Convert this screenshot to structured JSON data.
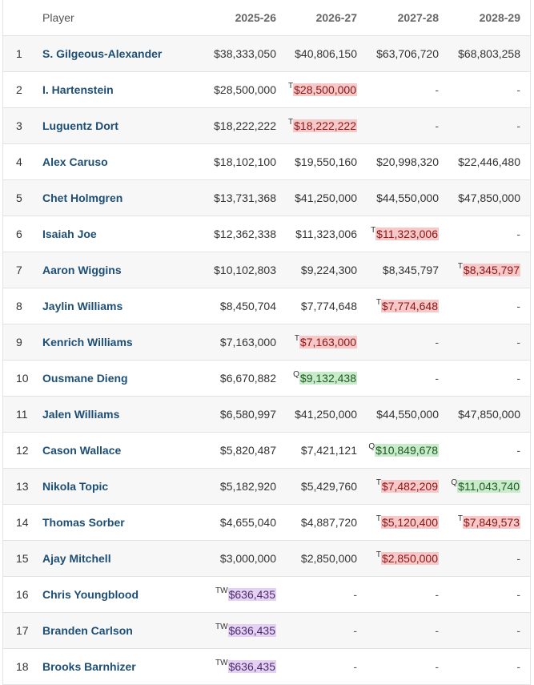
{
  "header": {
    "player_label": "Player",
    "seasons": [
      "2025-26",
      "2026-27",
      "2027-28",
      "2028-29"
    ]
  },
  "rows": [
    {
      "rank": "1",
      "name": "S. Gilgeous-Alexander",
      "cells": [
        {
          "tag": "",
          "value": "$38,333,050"
        },
        {
          "tag": "",
          "value": "$40,806,150"
        },
        {
          "tag": "",
          "value": "$63,706,720"
        },
        {
          "tag": "",
          "value": "$68,803,258"
        }
      ]
    },
    {
      "rank": "2",
      "name": "I. Hartenstein",
      "cells": [
        {
          "tag": "",
          "value": "$28,500,000"
        },
        {
          "tag": "T",
          "value": "$28,500,000"
        },
        {
          "tag": "",
          "value": "-"
        },
        {
          "tag": "",
          "value": "-"
        }
      ]
    },
    {
      "rank": "3",
      "name": "Luguentz Dort",
      "cells": [
        {
          "tag": "",
          "value": "$18,222,222"
        },
        {
          "tag": "T",
          "value": "$18,222,222"
        },
        {
          "tag": "",
          "value": "-"
        },
        {
          "tag": "",
          "value": "-"
        }
      ]
    },
    {
      "rank": "4",
      "name": "Alex Caruso",
      "cells": [
        {
          "tag": "",
          "value": "$18,102,100"
        },
        {
          "tag": "",
          "value": "$19,550,160"
        },
        {
          "tag": "",
          "value": "$20,998,320"
        },
        {
          "tag": "",
          "value": "$22,446,480"
        }
      ]
    },
    {
      "rank": "5",
      "name": "Chet Holmgren",
      "cells": [
        {
          "tag": "",
          "value": "$13,731,368"
        },
        {
          "tag": "",
          "value": "$41,250,000"
        },
        {
          "tag": "",
          "value": "$44,550,000"
        },
        {
          "tag": "",
          "value": "$47,850,000"
        }
      ]
    },
    {
      "rank": "6",
      "name": "Isaiah Joe",
      "cells": [
        {
          "tag": "",
          "value": "$12,362,338"
        },
        {
          "tag": "",
          "value": "$11,323,006"
        },
        {
          "tag": "T",
          "value": "$11,323,006"
        },
        {
          "tag": "",
          "value": "-"
        }
      ]
    },
    {
      "rank": "7",
      "name": "Aaron Wiggins",
      "cells": [
        {
          "tag": "",
          "value": "$10,102,803"
        },
        {
          "tag": "",
          "value": "$9,224,300"
        },
        {
          "tag": "",
          "value": "$8,345,797"
        },
        {
          "tag": "T",
          "value": "$8,345,797"
        }
      ]
    },
    {
      "rank": "8",
      "name": "Jaylin Williams",
      "cells": [
        {
          "tag": "",
          "value": "$8,450,704"
        },
        {
          "tag": "",
          "value": "$7,774,648"
        },
        {
          "tag": "T",
          "value": "$7,774,648"
        },
        {
          "tag": "",
          "value": "-"
        }
      ]
    },
    {
      "rank": "9",
      "name": "Kenrich Williams",
      "cells": [
        {
          "tag": "",
          "value": "$7,163,000"
        },
        {
          "tag": "T",
          "value": "$7,163,000"
        },
        {
          "tag": "",
          "value": "-"
        },
        {
          "tag": "",
          "value": "-"
        }
      ]
    },
    {
      "rank": "10",
      "name": "Ousmane Dieng",
      "cells": [
        {
          "tag": "",
          "value": "$6,670,882"
        },
        {
          "tag": "Q",
          "value": "$9,132,438"
        },
        {
          "tag": "",
          "value": "-"
        },
        {
          "tag": "",
          "value": "-"
        }
      ]
    },
    {
      "rank": "11",
      "name": "Jalen Williams",
      "cells": [
        {
          "tag": "",
          "value": "$6,580,997"
        },
        {
          "tag": "",
          "value": "$41,250,000"
        },
        {
          "tag": "",
          "value": "$44,550,000"
        },
        {
          "tag": "",
          "value": "$47,850,000"
        }
      ]
    },
    {
      "rank": "12",
      "name": "Cason Wallace",
      "cells": [
        {
          "tag": "",
          "value": "$5,820,487"
        },
        {
          "tag": "",
          "value": "$7,421,121"
        },
        {
          "tag": "Q",
          "value": "$10,849,678"
        },
        {
          "tag": "",
          "value": "-"
        }
      ]
    },
    {
      "rank": "13",
      "name": "Nikola Topic",
      "cells": [
        {
          "tag": "",
          "value": "$5,182,920"
        },
        {
          "tag": "",
          "value": "$5,429,760"
        },
        {
          "tag": "T",
          "value": "$7,482,209"
        },
        {
          "tag": "Q",
          "value": "$11,043,740"
        }
      ]
    },
    {
      "rank": "14",
      "name": "Thomas Sorber",
      "cells": [
        {
          "tag": "",
          "value": "$4,655,040"
        },
        {
          "tag": "",
          "value": "$4,887,720"
        },
        {
          "tag": "T",
          "value": "$5,120,400"
        },
        {
          "tag": "T",
          "value": "$7,849,573"
        }
      ]
    },
    {
      "rank": "15",
      "name": "Ajay Mitchell",
      "cells": [
        {
          "tag": "",
          "value": "$3,000,000"
        },
        {
          "tag": "",
          "value": "$2,850,000"
        },
        {
          "tag": "T",
          "value": "$2,850,000"
        },
        {
          "tag": "",
          "value": "-"
        }
      ]
    },
    {
      "rank": "16",
      "name": "Chris Youngblood",
      "cells": [
        {
          "tag": "TW",
          "value": "$636,435"
        },
        {
          "tag": "",
          "value": "-"
        },
        {
          "tag": "",
          "value": "-"
        },
        {
          "tag": "",
          "value": "-"
        }
      ]
    },
    {
      "rank": "17",
      "name": "Branden Carlson",
      "cells": [
        {
          "tag": "TW",
          "value": "$636,435"
        },
        {
          "tag": "",
          "value": "-"
        },
        {
          "tag": "",
          "value": "-"
        },
        {
          "tag": "",
          "value": "-"
        }
      ]
    },
    {
      "rank": "18",
      "name": "Brooks Barnhizer",
      "cells": [
        {
          "tag": "TW",
          "value": "$636,435"
        },
        {
          "tag": "",
          "value": "-"
        },
        {
          "tag": "",
          "value": "-"
        },
        {
          "tag": "",
          "value": "-"
        }
      ]
    }
  ],
  "colors": {
    "player_link": "#1d4e75",
    "tag_T": "#f6c8c8",
    "tag_Q": "#c9ebcb",
    "tag_TW": "#e4d2f2",
    "row_alt": "#f7f7f7"
  }
}
